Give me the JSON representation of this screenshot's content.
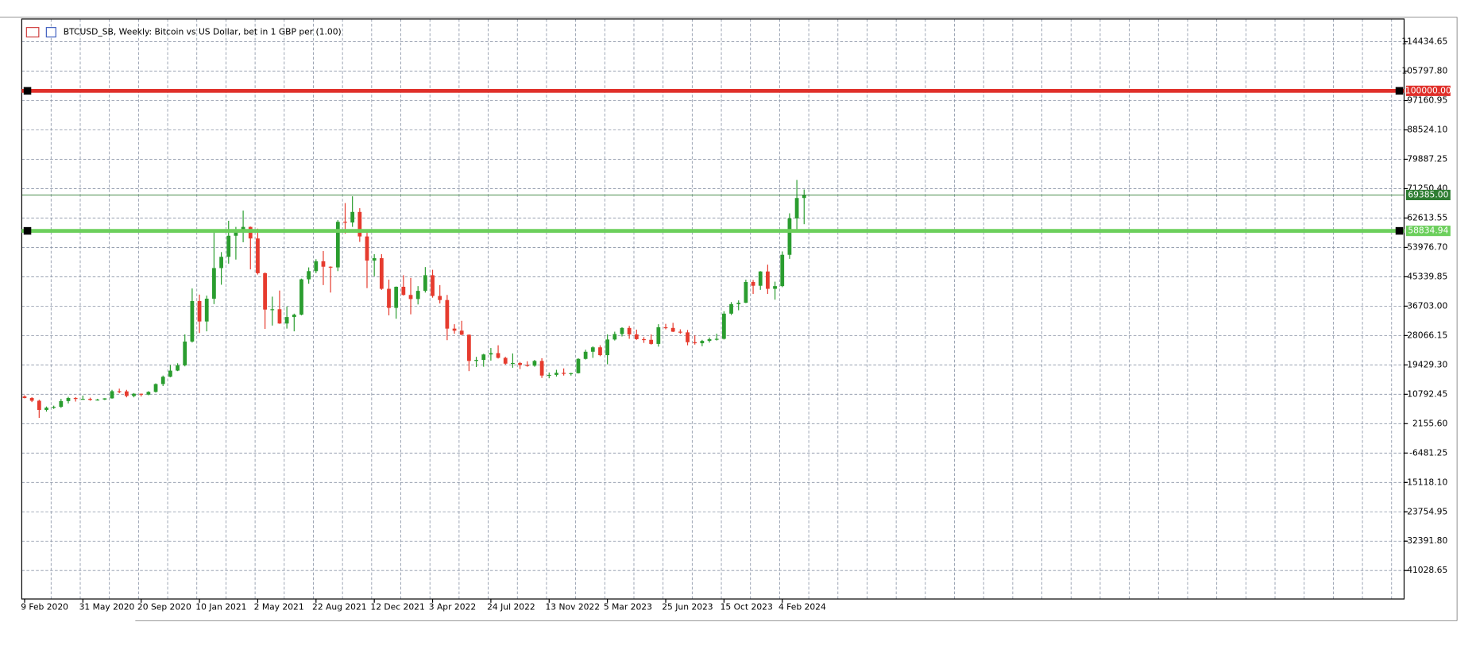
{
  "chart_data": {
    "type": "candlestick",
    "title": "BTCUSD_SB, Weekly:  Bitcoin vs US Dollar, bet in 1 GBP per (1.00)",
    "categories": [
      "9 Feb 2020",
      null,
      null,
      null,
      null,
      null,
      null,
      null,
      "31 May 2020",
      null,
      null,
      null,
      null,
      null,
      null,
      null,
      "20 Sep 2020",
      null,
      null,
      null,
      null,
      null,
      null,
      null,
      "10 Jan 2021",
      null,
      null,
      null,
      null,
      null,
      null,
      null,
      "2 May 2021",
      null,
      null,
      null,
      null,
      null,
      null,
      null,
      "22 Aug 2021",
      null,
      null,
      null,
      null,
      null,
      null,
      null,
      "12 Dec 2021",
      null,
      null,
      null,
      null,
      null,
      null,
      null,
      "3 Apr 2022",
      null,
      null,
      null,
      null,
      null,
      null,
      null,
      "24 Jul 2022",
      null,
      null,
      null,
      null,
      null,
      null,
      null,
      "13 Nov 2022",
      null,
      null,
      null,
      null,
      null,
      null,
      null,
      "5 Mar 2023",
      null,
      null,
      null,
      null,
      null,
      null,
      null,
      "25 Jun 2023",
      null,
      null,
      null,
      null,
      null,
      null,
      null,
      "15 Oct 2023",
      null,
      null,
      null,
      null,
      null,
      null,
      null,
      "4 Feb 2024",
      null,
      null,
      null
    ],
    "open": [
      10150,
      9700,
      8900,
      6200,
      6850,
      7100,
      8800,
      9700,
      9450,
      9450,
      9150,
      9250,
      9600,
      11700,
      11650,
      10300,
      10950,
      10700,
      11500,
      13800,
      15950,
      17750,
      19300,
      26300,
      38200,
      32200,
      38900,
      47900,
      51200,
      57400,
      58700,
      60000,
      56600,
      46400,
      35700,
      35800,
      31600,
      33500,
      34200,
      44600,
      47000,
      49900,
      48300,
      48100,
      61500,
      61300,
      64400,
      57200,
      50100,
      50800,
      41800,
      36200,
      42400,
      40000,
      38800,
      41200,
      45800,
      39700,
      38500,
      30100,
      29500,
      28300,
      20600,
      20900,
      22500,
      22900,
      21500,
      19800,
      20000,
      19400,
      19200,
      20600,
      16300,
      16500,
      17100,
      16800,
      17000,
      21200,
      23300,
      24600,
      22300,
      26900,
      28500,
      30300,
      28400,
      27000,
      26800,
      25600,
      30500,
      30300,
      29200,
      29000,
      26100,
      25800,
      26500,
      27000,
      27100,
      34500,
      37300,
      37700,
      43800,
      42700,
      46900,
      41800,
      42600,
      51800,
      62500,
      68500
    ],
    "high": [
      10500,
      9950,
      9200,
      7200,
      7450,
      9450,
      10050,
      9950,
      10400,
      9800,
      9450,
      9650,
      12100,
      12450,
      12100,
      11150,
      11000,
      11700,
      14000,
      16300,
      19400,
      19900,
      28400,
      41900,
      40100,
      39800,
      58300,
      52600,
      61800,
      60000,
      64800,
      60100,
      59500,
      46600,
      39500,
      41300,
      36600,
      34500,
      44800,
      48100,
      50500,
      52900,
      48400,
      62000,
      67000,
      69000,
      65500,
      59200,
      52000,
      52000,
      44500,
      42500,
      45800,
      45000,
      42600,
      48200,
      47400,
      42900,
      40000,
      31400,
      32400,
      28400,
      21800,
      22700,
      24400,
      25200,
      21800,
      22800,
      20300,
      20500,
      20900,
      21400,
      17200,
      18000,
      18400,
      17100,
      21400,
      23900,
      24900,
      25200,
      28400,
      29200,
      30500,
      30900,
      29800,
      27600,
      28400,
      31400,
      31500,
      31800,
      29900,
      29700,
      28100,
      26800,
      27500,
      28600,
      35200,
      37900,
      38400,
      44500,
      44400,
      47000,
      48900,
      43900,
      52800,
      64000,
      73800,
      71000
    ],
    "low": [
      9600,
      8500,
      3850,
      5700,
      6500,
      6800,
      8100,
      8650,
      9300,
      8900,
      8950,
      9100,
      9500,
      11100,
      9900,
      9900,
      10150,
      10500,
      11300,
      13200,
      15800,
      17600,
      19000,
      26000,
      28800,
      29300,
      37300,
      43000,
      49200,
      50400,
      55500,
      47500,
      46000,
      30000,
      31000,
      31500,
      30100,
      29300,
      34000,
      43300,
      46400,
      42900,
      40700,
      47000,
      58000,
      60000,
      55600,
      42000,
      45500,
      41500,
      34000,
      33000,
      39800,
      34300,
      37200,
      40700,
      39200,
      37500,
      26700,
      28600,
      28200,
      17600,
      18800,
      18900,
      20700,
      21300,
      19500,
      18600,
      18200,
      18900,
      18900,
      15600,
      15500,
      16000,
      16300,
      16300,
      16900,
      21000,
      21500,
      22000,
      19600,
      26600,
      27800,
      27100,
      26800,
      25900,
      25400,
      24800,
      29900,
      29100,
      28600,
      25200,
      25400,
      24900,
      26000,
      26600,
      26900,
      34100,
      35500,
      37600,
      40300,
      41500,
      40300,
      38600,
      42300,
      50600,
      59000,
      60800
    ],
    "close": [
      9700,
      8900,
      6200,
      6850,
      7100,
      8800,
      9700,
      9450,
      9450,
      9150,
      9250,
      9600,
      11700,
      11650,
      10300,
      10950,
      10700,
      11500,
      13800,
      15950,
      17750,
      19300,
      26300,
      38200,
      32200,
      38900,
      47900,
      51200,
      57400,
      58700,
      60000,
      56600,
      46400,
      35700,
      35800,
      31600,
      33500,
      34200,
      44600,
      47000,
      49900,
      48300,
      48100,
      61500,
      61300,
      64400,
      57200,
      50100,
      50800,
      41800,
      36200,
      42400,
      40000,
      38800,
      41200,
      45800,
      39700,
      38500,
      30100,
      29500,
      28300,
      20600,
      20900,
      22500,
      22900,
      21500,
      19800,
      20000,
      19400,
      19200,
      20600,
      16300,
      16500,
      17100,
      16800,
      17000,
      21200,
      23300,
      24600,
      22300,
      26900,
      28500,
      30300,
      28400,
      27000,
      26800,
      25600,
      30500,
      30300,
      29200,
      29000,
      26100,
      25800,
      26500,
      27000,
      27100,
      34500,
      37300,
      37700,
      43800,
      42700,
      46900,
      41800,
      42600,
      51800,
      62500,
      68500,
      69385
    ],
    "up_color": "#2a9d2f",
    "down_color": "#e63b2e",
    "ylim": [
      -49387,
      121121
    ],
    "yticks": [
      114434.65,
      {
        "value": 105797.8,
        "label": "105797.80"
      },
      97160.95,
      {
        "value": 88524.1,
        "label": "88524.10"
      },
      79887.25,
      {
        "value": 71250.4,
        "label": "71250.40"
      },
      62613.55,
      {
        "value": 53976.7,
        "label": "53976.70"
      },
      45339.85,
      {
        "value": 36703,
        "label": "36703.00"
      },
      28066.15,
      {
        "value": 19429.3,
        "label": "19429.30"
      },
      10792.45,
      {
        "value": 2155.6,
        "label": "2155.60"
      },
      -6481.25,
      {
        "value": -15118.1,
        "label": "-15118.10"
      },
      -23754.95,
      {
        "value": -32391.8,
        "label": "-32391.80"
      },
      -41028.65
    ],
    "grid": true,
    "levels": [
      {
        "value": 100000,
        "label": "100000.00",
        "color": "#e0302a"
      },
      {
        "value": 58834.94,
        "label": "58834.94",
        "color": "#6ccf5c"
      }
    ],
    "price_line": {
      "value": 69385,
      "label": "69385.00",
      "color": "#2e7d32"
    }
  }
}
